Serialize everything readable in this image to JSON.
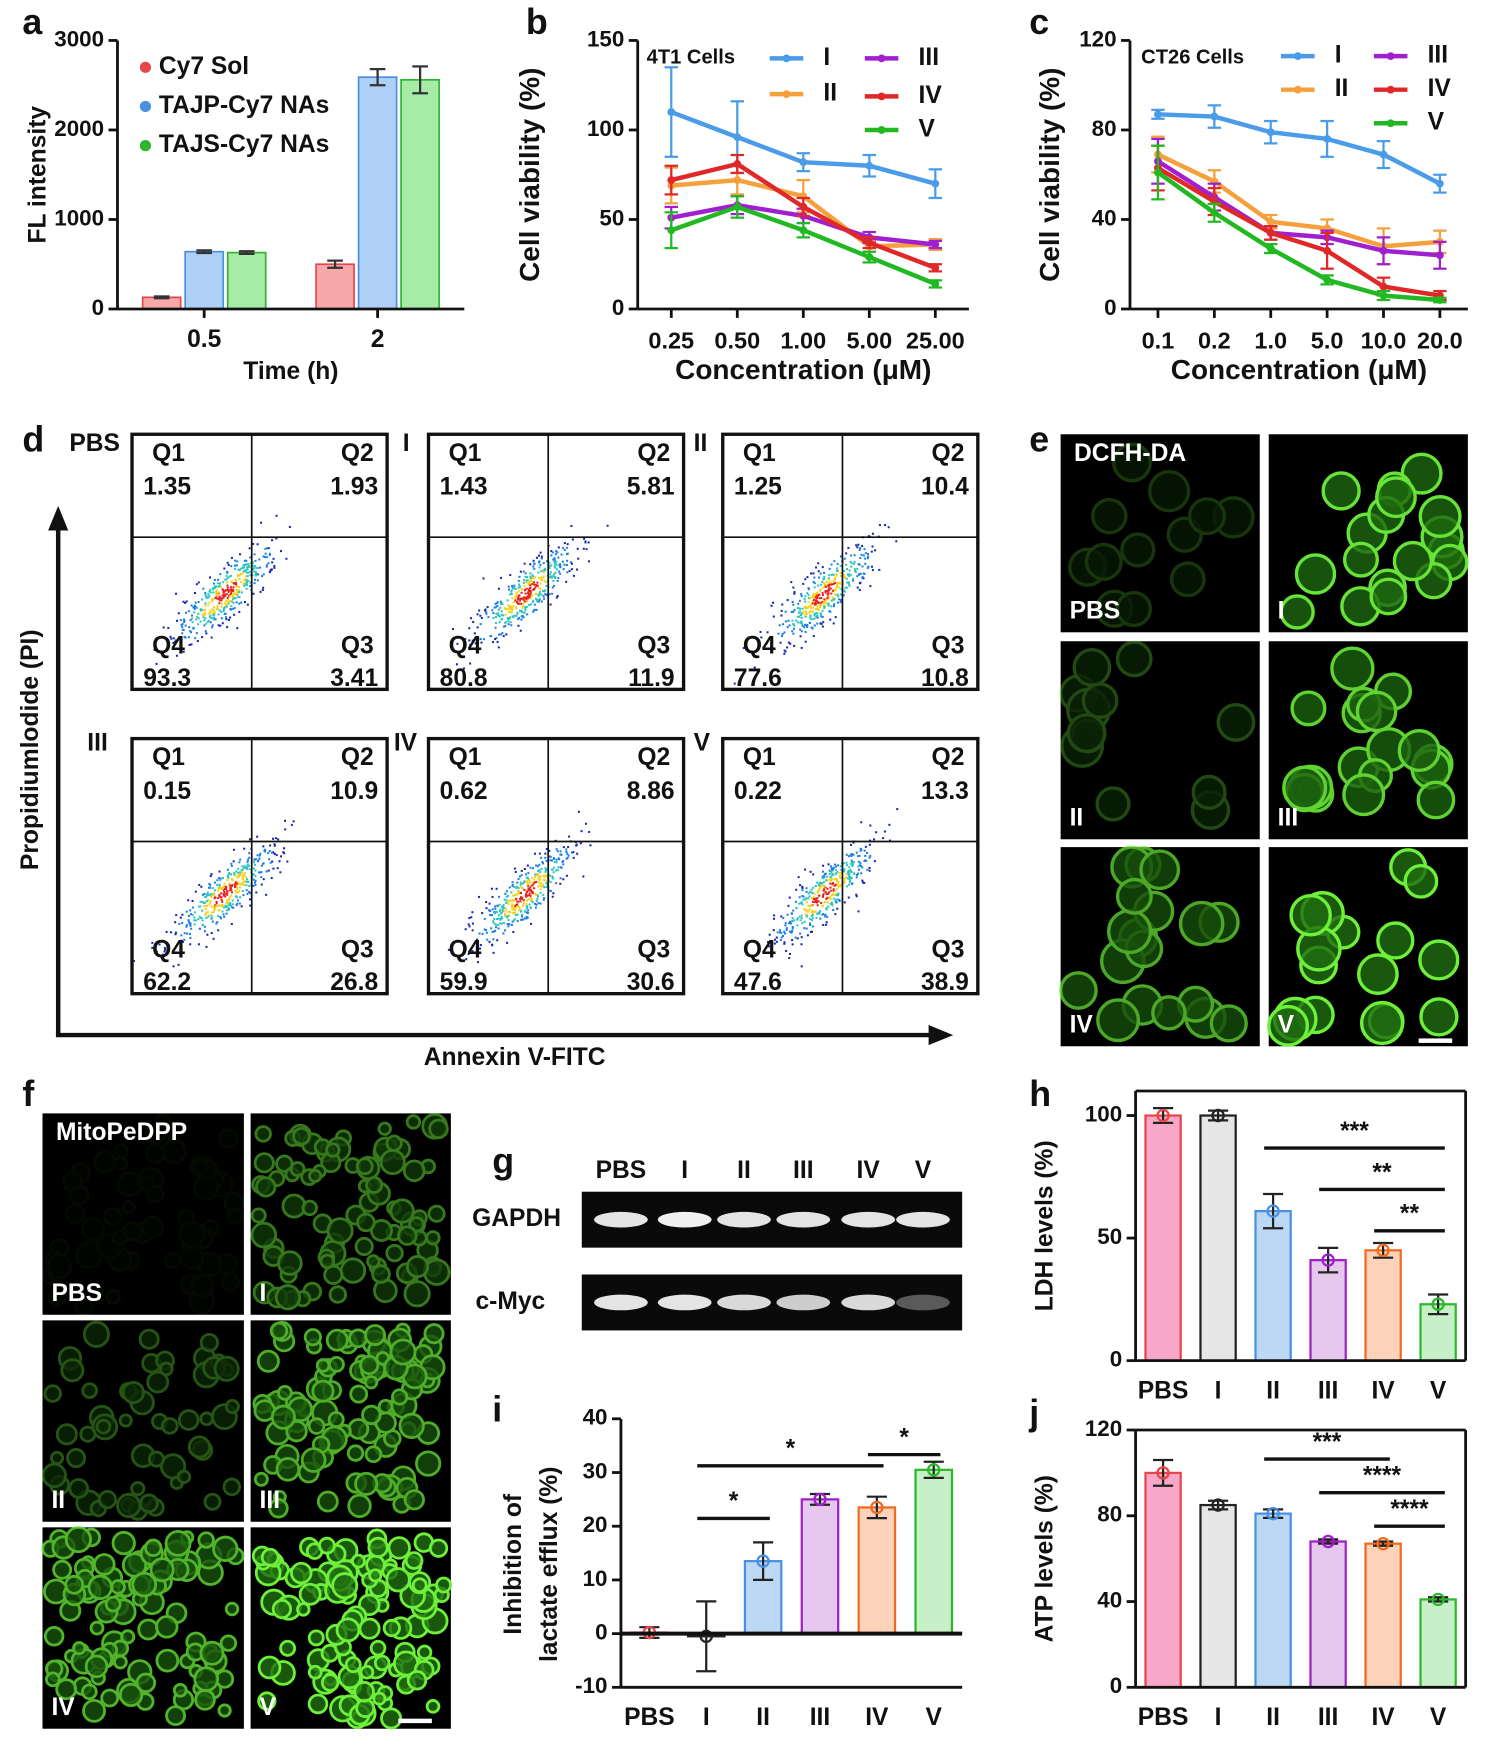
{
  "chart_data": [
    {
      "panel": "a",
      "type": "bar",
      "x_label": "Time (h)",
      "y_label": "FL intensity",
      "categories": [
        "0.5",
        "2"
      ],
      "series": [
        {
          "name": "Cy7 Sol",
          "color": "#e8454a",
          "fill": "#f7a9a9",
          "values": [
            130,
            500
          ],
          "errors": [
            10,
            40
          ]
        },
        {
          "name": "TAJP-Cy7 NAs",
          "color": "#4a90e2",
          "fill": "#aed0f7",
          "values": [
            640,
            2590
          ],
          "errors": [
            15,
            90
          ]
        },
        {
          "name": "TAJS-Cy7 NAs",
          "color": "#2fb52f",
          "fill": "#a6eba6",
          "values": [
            630,
            2560
          ],
          "errors": [
            15,
            150
          ]
        }
      ],
      "ylim": [
        0,
        3000
      ],
      "yticks": [
        0,
        1000,
        2000,
        3000
      ],
      "legend": "upper left"
    },
    {
      "panel": "b",
      "type": "line",
      "title": "4T1 Cells",
      "x_label": "Concentration (μM)",
      "y_label": "Cell viability (%)",
      "categories": [
        "0.25",
        "0.50",
        "1.00",
        "5.00",
        "25.00"
      ],
      "series": [
        {
          "name": "I",
          "color": "#4a9be8",
          "values": [
            110,
            96,
            82,
            80,
            70
          ],
          "errors": [
            25,
            20,
            5,
            6,
            8
          ]
        },
        {
          "name": "II",
          "color": "#f5a03c",
          "values": [
            69,
            72,
            63,
            35,
            36
          ],
          "errors": [
            10,
            8,
            9,
            3,
            3
          ]
        },
        {
          "name": "III",
          "color": "#a020d0",
          "values": [
            51,
            58,
            52,
            40,
            36
          ],
          "errors": [
            6,
            5,
            4,
            3,
            2
          ]
        },
        {
          "name": "IV",
          "color": "#e02828",
          "values": [
            72,
            81,
            57,
            37,
            23
          ],
          "errors": [
            8,
            5,
            5,
            3,
            2
          ]
        },
        {
          "name": "V",
          "color": "#22b822",
          "values": [
            44,
            57,
            44,
            29,
            14
          ],
          "errors": [
            10,
            6,
            4,
            3,
            2
          ]
        }
      ],
      "ylim": [
        0,
        150
      ],
      "yticks": [
        0,
        50,
        100,
        150
      ],
      "legend": "upper right"
    },
    {
      "panel": "c",
      "type": "line",
      "title": "CT26 Cells",
      "x_label": "Concentration (μM)",
      "y_label": "Cell viability (%)",
      "categories": [
        "0.1",
        "0.2",
        "1.0",
        "5.0",
        "10.0",
        "20.0"
      ],
      "series": [
        {
          "name": "I",
          "color": "#4a9be8",
          "values": [
            87,
            86,
            79,
            76,
            69,
            56
          ],
          "errors": [
            2,
            5,
            5,
            8,
            6,
            4
          ]
        },
        {
          "name": "II",
          "color": "#f5a03c",
          "values": [
            69,
            57,
            39,
            36,
            28,
            30
          ],
          "errors": [
            8,
            5,
            3,
            4,
            8,
            5
          ]
        },
        {
          "name": "III",
          "color": "#a020d0",
          "values": [
            66,
            50,
            34,
            32,
            26,
            24
          ],
          "errors": [
            10,
            6,
            3,
            3,
            6,
            6
          ]
        },
        {
          "name": "IV",
          "color": "#e02828",
          "values": [
            63,
            48,
            34,
            26,
            10,
            6
          ],
          "errors": [
            10,
            6,
            3,
            8,
            4,
            2
          ]
        },
        {
          "name": "V",
          "color": "#22b822",
          "values": [
            61,
            43,
            27,
            13,
            6,
            4
          ],
          "errors": [
            12,
            4,
            2,
            2,
            2,
            1
          ]
        }
      ],
      "ylim": [
        0,
        120
      ],
      "yticks": [
        0,
        40,
        80,
        120
      ],
      "legend": "upper right"
    },
    {
      "panel": "h",
      "type": "bar",
      "y_label": "LDH levels (%)",
      "categories": [
        "PBS",
        "I",
        "II",
        "III",
        "IV",
        "V"
      ],
      "values": [
        100,
        100,
        61,
        41,
        45,
        23
      ],
      "errors": [
        3,
        2,
        7,
        5,
        3,
        4
      ],
      "colors": [
        "#e8454a",
        "#222222",
        "#4a90e2",
        "#a020c8",
        "#f06a20",
        "#2cb82c"
      ],
      "fills": [
        "#f7a8c8",
        "#e6e6e6",
        "#bcd8f5",
        "#e6c8ef",
        "#fcd2b9",
        "#c8f0c8"
      ],
      "ylim": [
        0,
        110
      ],
      "yticks": [
        0,
        50,
        100
      ],
      "significance": [
        {
          "label": "***",
          "from": "II",
          "to": "V"
        },
        {
          "label": "**",
          "from": "III",
          "to": "V"
        },
        {
          "label": "**",
          "from": "IV",
          "to": "V"
        }
      ]
    },
    {
      "panel": "i",
      "type": "bar",
      "y_label": [
        "Inhibition of",
        "lactate efflux (%)"
      ],
      "categories": [
        "PBS",
        "I",
        "II",
        "III",
        "IV",
        "V"
      ],
      "values": [
        0.2,
        -0.5,
        13.5,
        25,
        23.5,
        30.5
      ],
      "errors": [
        1,
        6.5,
        3.5,
        1,
        2,
        1.5
      ],
      "colors": [
        "#e8454a",
        "#222222",
        "#4a90e2",
        "#a020c8",
        "#f06a20",
        "#2cb82c"
      ],
      "fills": [
        "#f7a8c8",
        "#e6e6e6",
        "#bcd8f5",
        "#e6c8ef",
        "#fcd2b9",
        "#c8f0c8"
      ],
      "ylim": [
        -10,
        40
      ],
      "yticks": [
        -10,
        0,
        10,
        20,
        30,
        40
      ],
      "significance": [
        {
          "label": "*",
          "from": "I",
          "to": "II"
        },
        {
          "label": "*",
          "from": "I",
          "to": "IV"
        },
        {
          "label": "*",
          "from": "IV",
          "to": "V"
        }
      ]
    },
    {
      "panel": "j",
      "type": "bar",
      "y_label": "ATP levels (%)",
      "categories": [
        "PBS",
        "I",
        "II",
        "III",
        "IV",
        "V"
      ],
      "values": [
        100,
        85,
        81,
        68,
        67,
        41
      ],
      "errors": [
        6,
        2,
        2,
        1,
        1,
        1
      ],
      "colors": [
        "#e8454a",
        "#222222",
        "#4a90e2",
        "#a020c8",
        "#f06a20",
        "#2cb82c"
      ],
      "fills": [
        "#f7a8c8",
        "#e6e6e6",
        "#bcd8f5",
        "#e6c8ef",
        "#fcd2b9",
        "#c8f0c8"
      ],
      "ylim": [
        0,
        120
      ],
      "yticks": [
        0,
        40,
        80,
        120
      ],
      "significance": [
        {
          "label": "***",
          "from": "II",
          "to": "IV"
        },
        {
          "label": "****",
          "from": "III",
          "to": "V"
        },
        {
          "label": "****",
          "from": "IV",
          "to": "V"
        }
      ]
    }
  ],
  "flow": {
    "panel": "d",
    "y_label": "Propidiumlodide (PI)",
    "x_label": "Annexin V-FITC",
    "quadrant_names": [
      "Q1",
      "Q2",
      "Q3",
      "Q4"
    ],
    "plots": [
      {
        "label": "PBS",
        "quadrants": [
          1.35,
          1.93,
          3.41,
          93.3
        ]
      },
      {
        "label": "I",
        "quadrants": [
          1.43,
          5.81,
          11.9,
          80.8
        ]
      },
      {
        "label": "II",
        "quadrants": [
          1.25,
          10.4,
          10.8,
          77.6
        ]
      },
      {
        "label": "III",
        "quadrants": [
          0.15,
          10.9,
          26.8,
          62.2
        ]
      },
      {
        "label": "IV",
        "quadrants": [
          0.62,
          8.86,
          30.6,
          59.9
        ]
      },
      {
        "label": "V",
        "quadrants": [
          0.22,
          13.3,
          38.9,
          47.6
        ]
      }
    ]
  },
  "dcfh": {
    "panel": "e",
    "stain": "DCFH-DA",
    "labels": [
      "PBS",
      "I",
      "II",
      "III",
      "IV",
      "V"
    ]
  },
  "mito": {
    "panel": "f",
    "stain": "MitoPeDPP",
    "labels": [
      "PBS",
      "I",
      "II",
      "III",
      "IV",
      "V"
    ]
  },
  "blot": {
    "panel": "g",
    "lanes": [
      "PBS",
      "I",
      "II",
      "III",
      "IV",
      "V"
    ],
    "rows": [
      "GAPDH",
      "c-Myc"
    ]
  }
}
